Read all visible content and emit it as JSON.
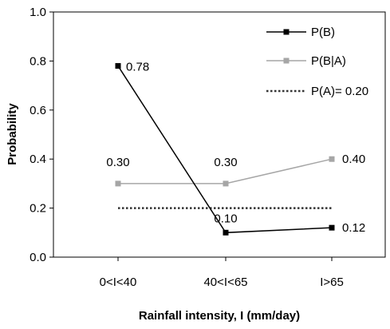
{
  "chart_data": {
    "type": "line",
    "xlabel": "Rainfall intensity, I (mm/day)",
    "ylabel": "Probability",
    "categories": [
      "0<I<40",
      "40<I<65",
      "I>65"
    ],
    "ylim": [
      0.0,
      1.0
    ],
    "yticks": [
      "0.0",
      "0.2",
      "0.4",
      "0.6",
      "0.8",
      "1.0"
    ],
    "grid": false,
    "legend_position": "top-right",
    "series": [
      {
        "name": "P(B)",
        "values": [
          0.78,
          0.1,
          0.12
        ],
        "labels": [
          "0.78",
          "0.10",
          "0.12"
        ],
        "color": "#000000",
        "style": "solid-square-markers"
      },
      {
        "name": "P(B|A)",
        "values": [
          0.3,
          0.3,
          0.4
        ],
        "labels": [
          "0.30",
          "0.30",
          "0.40"
        ],
        "color": "#a6a6a6",
        "style": "solid-square-markers"
      }
    ],
    "reference_line": {
      "name": "P(A)= 0.20",
      "value": 0.2,
      "color": "#333333",
      "style": "dotted"
    }
  }
}
